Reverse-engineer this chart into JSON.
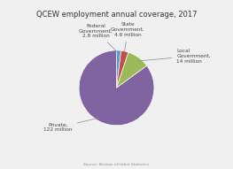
{
  "title": "QCEW employment annual coverage, 2017",
  "slices": [
    {
      "label": "Federal\nGovernment,\n2.8 million",
      "value": 2.8,
      "color": "#5b9bd5"
    },
    {
      "label": "State\nGovernment,\n4.6 million",
      "value": 4.6,
      "color": "#c0504d"
    },
    {
      "label": "Local\nGovernment,\n14 million",
      "value": 14.0,
      "color": "#9bbb59"
    },
    {
      "label": "Private,\n122 million",
      "value": 122.0,
      "color": "#8064a2"
    }
  ],
  "source": "Source: Bureau of Labor Statistics",
  "bg_color": "#f0f0f0",
  "title_fontsize": 6.0,
  "label_fontsize": 4.2,
  "source_fontsize": 3.2
}
